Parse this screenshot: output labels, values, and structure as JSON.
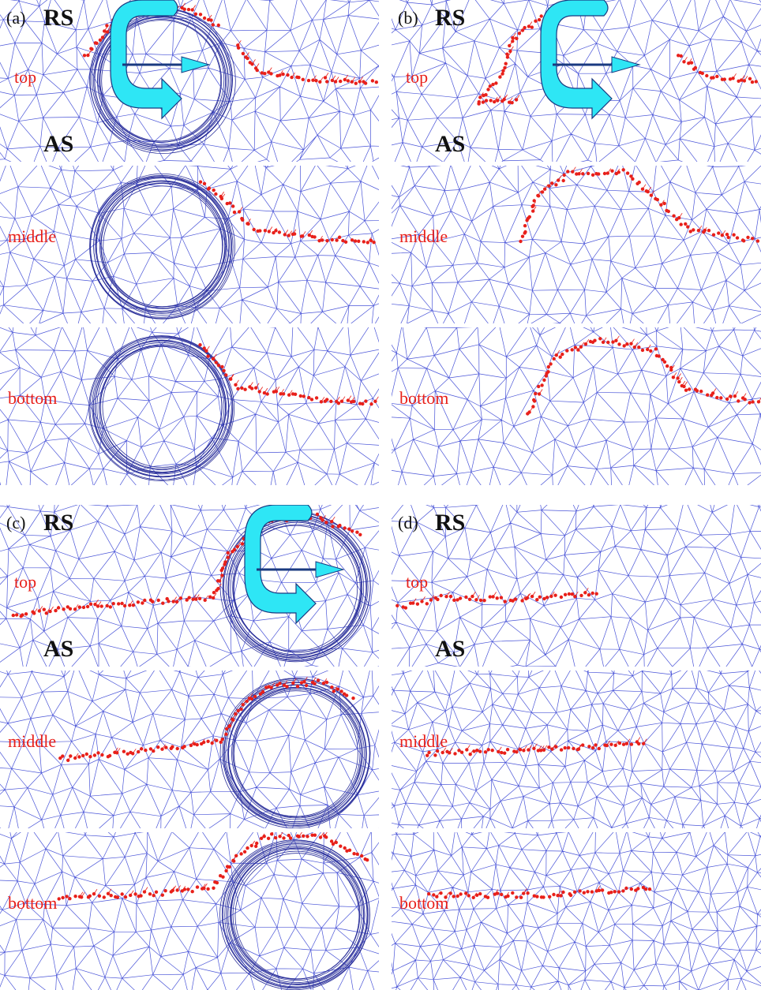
{
  "panels": [
    {
      "label": "(a)",
      "rs": "RS",
      "as": "AS",
      "rows": [
        "top",
        "middle",
        "bottom"
      ]
    },
    {
      "label": "(b)",
      "rs": "RS",
      "as": "AS",
      "rows": [
        "top",
        "middle",
        "bottom"
      ]
    },
    {
      "label": "(c)",
      "rs": "RS",
      "as": "AS",
      "rows": [
        "top",
        "middle",
        "bottom"
      ]
    },
    {
      "label": "(d)",
      "rs": "RS",
      "as": "AS",
      "rows": [
        "top",
        "middle",
        "bottom"
      ]
    }
  ]
}
